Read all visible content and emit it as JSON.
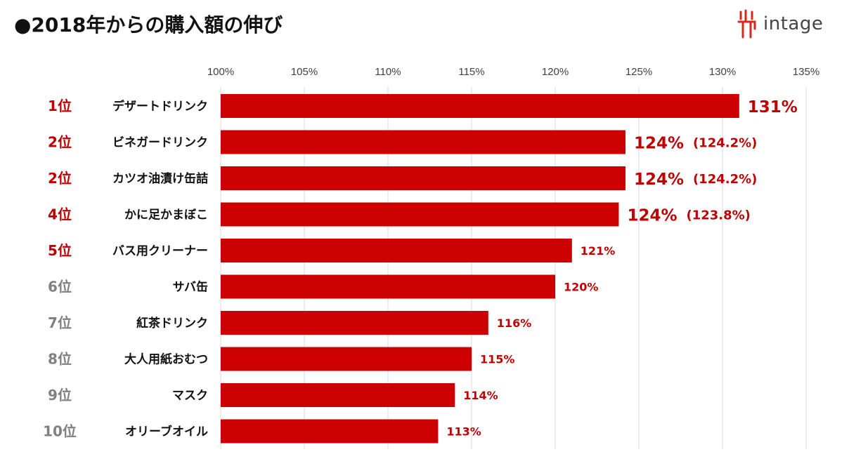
{
  "header": {
    "title": "●2018年からの購入額の伸び",
    "logo_text": "intage"
  },
  "colors": {
    "bar": "#CC0000",
    "rank_top": "#C00000",
    "rank_other": "#808080",
    "value_label": "#C00000",
    "grid": "#D9D9D9",
    "tick": "#404040"
  },
  "chart_data": {
    "type": "bar",
    "orientation": "horizontal",
    "title": "",
    "xlabel": "",
    "ylabel": "",
    "xlim": [
      100,
      135
    ],
    "x_ticks": [
      "100%",
      "105%",
      "110%",
      "115%",
      "120%",
      "125%",
      "130%",
      "135%"
    ],
    "x_tick_values": [
      100,
      105,
      110,
      115,
      120,
      125,
      130,
      135
    ],
    "grid": true,
    "categories": [
      "デザートドリンク",
      "ビネガードリンク",
      "カツオ油漬け缶詰",
      "かに足かまぼこ",
      "バス用クリーナー",
      "サバ缶",
      "紅茶ドリンク",
      "大人用紙おむつ",
      "マスク",
      "オリーブオイル"
    ],
    "ranks": [
      "1位",
      "2位",
      "2位",
      "4位",
      "5位",
      "6位",
      "7位",
      "8位",
      "9位",
      "10位"
    ],
    "rank_highlight": [
      true,
      true,
      true,
      true,
      true,
      false,
      false,
      false,
      false,
      false
    ],
    "values": [
      131,
      124.2,
      124.2,
      123.8,
      121,
      120,
      116,
      115,
      114,
      113
    ],
    "data_labels": [
      "131%",
      "124%",
      "124%",
      "124%",
      "121%",
      "120%",
      "116%",
      "115%",
      "114%",
      "113%"
    ],
    "sub_labels": [
      "",
      "(124.2%)",
      "(124.2%)",
      "(123.8%)",
      "",
      "",
      "",
      "",
      "",
      ""
    ],
    "label_emphasis": [
      true,
      true,
      true,
      true,
      false,
      false,
      false,
      false,
      false,
      false
    ]
  }
}
